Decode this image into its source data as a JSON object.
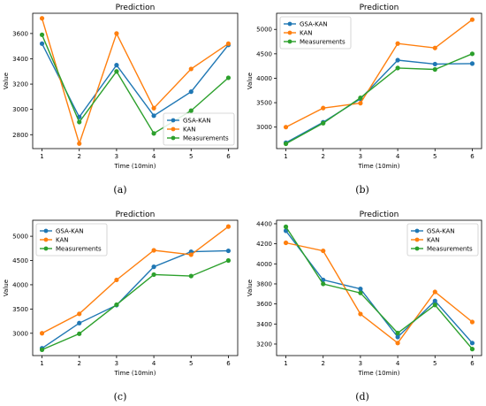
{
  "chart_data": [
    {
      "type": "line",
      "caption": "(a)",
      "title": "Prediction",
      "xlabel": "Time (10min)",
      "ylabel": "Value",
      "x": [
        1,
        2,
        3,
        4,
        5,
        6
      ],
      "xlim": [
        0.75,
        6.25
      ],
      "ylim": [
        2690,
        3760
      ],
      "xticks": [
        1,
        2,
        3,
        4,
        5,
        6
      ],
      "yticks": [
        2800,
        3000,
        3200,
        3400,
        3600
      ],
      "legend_position": "lower-right",
      "series": [
        {
          "name": "GSA-KAN",
          "color": "#1f77b4",
          "values": [
            3520,
            2940,
            3350,
            2950,
            3140,
            3510
          ]
        },
        {
          "name": "KAN",
          "color": "#ff7f0e",
          "values": [
            3720,
            2730,
            3600,
            3010,
            3320,
            3520
          ]
        },
        {
          "name": "Measurements",
          "color": "#2ca02c",
          "values": [
            3590,
            2900,
            3300,
            2810,
            2990,
            3250
          ]
        }
      ]
    },
    {
      "type": "line",
      "caption": "(b)",
      "title": "Prediction",
      "xlabel": "Time (10min)",
      "ylabel": "Value",
      "x": [
        1,
        2,
        3,
        4,
        5,
        6
      ],
      "xlim": [
        0.75,
        6.25
      ],
      "ylim": [
        2560,
        5330
      ],
      "xticks": [
        1,
        2,
        3,
        4,
        5,
        6
      ],
      "yticks": [
        3000,
        3500,
        4000,
        4500,
        5000
      ],
      "legend_position": "upper-left",
      "series": [
        {
          "name": "GSA-KAN",
          "color": "#1f77b4",
          "values": [
            2680,
            3100,
            3580,
            4370,
            4290,
            4300
          ]
        },
        {
          "name": "KAN",
          "color": "#ff7f0e",
          "values": [
            3000,
            3390,
            3490,
            4710,
            4620,
            5200
          ]
        },
        {
          "name": "Measurements",
          "color": "#2ca02c",
          "values": [
            2660,
            3080,
            3600,
            4210,
            4180,
            4500
          ]
        }
      ]
    },
    {
      "type": "line",
      "caption": "(c)",
      "title": "Prediction",
      "xlabel": "Time (10min)",
      "ylabel": "Value",
      "x": [
        1,
        2,
        3,
        4,
        5,
        6
      ],
      "xlim": [
        0.75,
        6.25
      ],
      "ylim": [
        2540,
        5330
      ],
      "xticks": [
        1,
        2,
        3,
        4,
        5,
        6
      ],
      "yticks": [
        3000,
        3500,
        4000,
        4500,
        5000
      ],
      "legend_position": "upper-left",
      "series": [
        {
          "name": "GSA-KAN",
          "color": "#1f77b4",
          "values": [
            2690,
            3210,
            3580,
            4370,
            4680,
            4700
          ]
        },
        {
          "name": "KAN",
          "color": "#ff7f0e",
          "values": [
            3000,
            3400,
            4100,
            4710,
            4620,
            5200
          ]
        },
        {
          "name": "Measurements",
          "color": "#2ca02c",
          "values": [
            2660,
            2990,
            3590,
            4210,
            4180,
            4500
          ]
        }
      ]
    },
    {
      "type": "line",
      "caption": "(d)",
      "title": "Prediction",
      "xlabel": "Time (10min)",
      "ylabel": "Value",
      "x": [
        1,
        2,
        3,
        4,
        5,
        6
      ],
      "xlim": [
        0.75,
        6.25
      ],
      "ylim": [
        3085,
        4435
      ],
      "xticks": [
        1,
        2,
        3,
        4,
        5,
        6
      ],
      "yticks": [
        3200,
        3400,
        3600,
        3800,
        4000,
        4200,
        4400
      ],
      "legend_position": "upper-right",
      "series": [
        {
          "name": "GSA-KAN",
          "color": "#1f77b4",
          "values": [
            4330,
            3840,
            3750,
            3270,
            3630,
            3210
          ]
        },
        {
          "name": "KAN",
          "color": "#ff7f0e",
          "values": [
            4210,
            4130,
            3500,
            3210,
            3720,
            3420
          ]
        },
        {
          "name": "Measurements",
          "color": "#2ca02c",
          "values": [
            4370,
            3800,
            3710,
            3310,
            3590,
            3150
          ]
        }
      ]
    }
  ]
}
